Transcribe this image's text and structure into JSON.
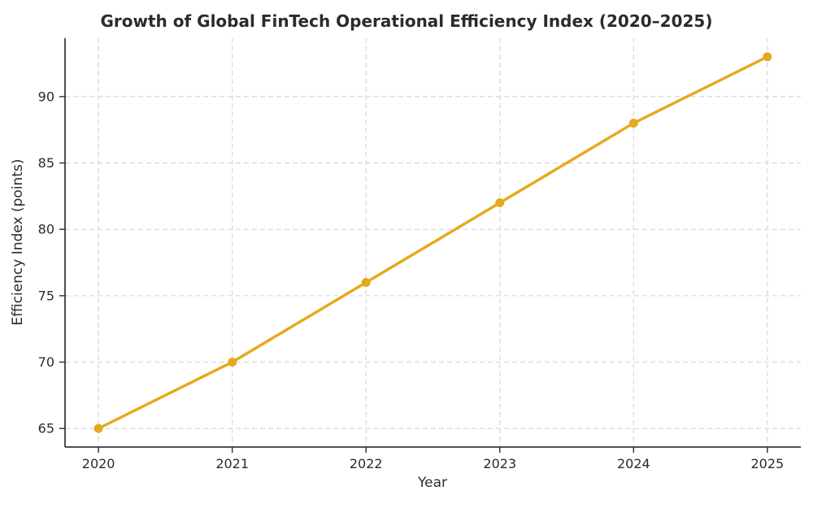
{
  "chart_data": {
    "type": "line",
    "title": "Growth of Global FinTech Operational Efficiency Index (2020–2025)",
    "xlabel": "Year",
    "ylabel": "Efficiency Index (points)",
    "x": [
      2020,
      2021,
      2022,
      2023,
      2024,
      2025
    ],
    "series": [
      {
        "name": "Efficiency Index",
        "values": [
          65,
          70,
          76,
          82,
          88,
          93
        ]
      }
    ],
    "xticks": [
      2020,
      2021,
      2022,
      2023,
      2024,
      2025
    ],
    "yticks": [
      65,
      70,
      75,
      80,
      85,
      90
    ],
    "xlim": [
      2019.75,
      2025.25
    ],
    "ylim": [
      63.6,
      94.4
    ],
    "grid": true,
    "grid_style": "dashed",
    "legend_position": "none",
    "colors": {
      "line": "#E6A81C",
      "marker": "#E6A81C",
      "grid": "#D8D8D8",
      "axis": "#3A3A3A",
      "text": "#2B2B2B",
      "background": "#FFFFFF"
    }
  }
}
